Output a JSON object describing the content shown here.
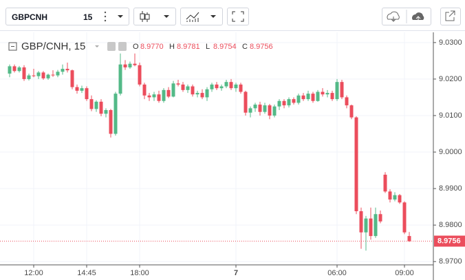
{
  "toolbar": {
    "symbol": "GBPCNH",
    "interval": "15"
  },
  "chart_data": {
    "type": "candlestick",
    "title": "GBP/CNH, 15",
    "legend": [
      {
        "label": "O",
        "value": "8.9770"
      },
      {
        "label": "H",
        "value": "8.9781"
      },
      {
        "label": "L",
        "value": "8.9754"
      },
      {
        "label": "C",
        "value": "8.9756"
      }
    ],
    "categories": [
      null,
      null,
      null,
      null,
      null,
      "12:00",
      null,
      null,
      null,
      null,
      null,
      null,
      null,
      null,
      null,
      null,
      "14:45",
      null,
      null,
      null,
      null,
      null,
      null,
      null,
      null,
      null,
      null,
      "18:00",
      null,
      null,
      null,
      null,
      null,
      null,
      null,
      null,
      null,
      null,
      null,
      null,
      null,
      null,
      null,
      null,
      null,
      null,
      null,
      "7",
      null,
      null,
      null,
      null,
      null,
      null,
      null,
      null,
      null,
      null,
      null,
      null,
      null,
      null,
      null,
      null,
      null,
      null,
      null,
      null,
      "06:00",
      null,
      null,
      null,
      null,
      null,
      null,
      null,
      null,
      null,
      null,
      null,
      null,
      null,
      "09:00",
      null
    ],
    "open": [
      9.0215,
      9.0235,
      9.0222,
      9.0232,
      9.02,
      9.021,
      9.0208,
      9.0218,
      9.0202,
      9.0212,
      9.021,
      9.022,
      9.0228,
      9.0224,
      9.0178,
      9.0168,
      9.0175,
      9.0145,
      9.0118,
      9.0138,
      9.0105,
      9.0115,
      9.005,
      9.016,
      9.024,
      9.0232,
      9.0242,
      9.0238,
      9.0185,
      9.0155,
      9.015,
      9.0158,
      9.014,
      9.017,
      9.0152,
      9.0188,
      9.0185,
      9.017,
      9.018,
      9.0158,
      9.0162,
      9.015,
      9.0172,
      9.0185,
      9.0175,
      9.018,
      9.0192,
      9.0175,
      9.0185,
      9.0165,
      9.0108,
      9.012,
      9.013,
      9.011,
      9.0128,
      9.01,
      9.0125,
      9.014,
      9.0128,
      9.0145,
      9.0135,
      9.0155,
      9.0145,
      9.016,
      9.014,
      9.0165,
      9.0158,
      9.0162,
      9.0145,
      9.0192,
      9.015,
      9.0128,
      9.0095,
      8.9838,
      8.978,
      8.9818,
      8.977,
      8.983,
      8.9938,
      8.9892,
      8.987,
      8.9882,
      8.9862,
      8.977
    ],
    "high": [
      9.024,
      9.024,
      9.0236,
      9.0238,
      9.0215,
      9.0228,
      9.0222,
      9.0222,
      9.0215,
      9.0224,
      9.0225,
      9.024,
      9.0245,
      9.0226,
      9.0185,
      9.0182,
      9.018,
      9.0155,
      9.0142,
      9.0145,
      9.012,
      9.0118,
      9.0165,
      9.027,
      9.0252,
      9.0248,
      9.027,
      9.0245,
      9.019,
      9.0162,
      9.0165,
      9.0168,
      9.0175,
      9.0178,
      9.0195,
      9.0198,
      9.0192,
      9.0185,
      9.0185,
      9.0168,
      9.0172,
      9.0178,
      9.019,
      9.0192,
      9.0185,
      9.0198,
      9.02,
      9.019,
      9.019,
      9.0168,
      9.0125,
      9.0135,
      9.0138,
      9.0135,
      9.0132,
      9.013,
      9.0145,
      9.0145,
      9.015,
      9.015,
      9.016,
      9.0162,
      9.0168,
      9.0165,
      9.017,
      9.0175,
      9.017,
      9.0168,
      9.02,
      9.0198,
      9.0155,
      9.013,
      9.0098,
      8.9848,
      8.9825,
      8.9848,
      8.9848,
      8.984,
      8.9945,
      8.9898,
      8.989,
      8.9885,
      8.9865,
      8.9781
    ],
    "low": [
      9.0205,
      9.0218,
      9.0218,
      9.0195,
      9.0196,
      9.0205,
      9.02,
      9.0198,
      9.0198,
      9.0206,
      9.0205,
      9.0212,
      9.0218,
      9.0172,
      9.016,
      9.0162,
      9.014,
      9.0112,
      9.011,
      9.0098,
      9.0095,
      9.004,
      9.0045,
      9.0155,
      9.0225,
      9.0228,
      9.0235,
      9.018,
      9.0145,
      9.014,
      9.014,
      9.0135,
      9.0135,
      9.0148,
      9.015,
      9.018,
      9.0165,
      9.0162,
      9.0152,
      9.015,
      9.0145,
      9.014,
      9.0165,
      9.017,
      9.0168,
      9.0175,
      9.017,
      9.0165,
      9.016,
      9.01,
      9.0095,
      9.011,
      9.01,
      9.0105,
      9.009,
      9.0095,
      9.0115,
      9.012,
      9.0122,
      9.013,
      9.013,
      9.014,
      9.014,
      9.0135,
      9.0138,
      9.0152,
      9.015,
      9.014,
      9.014,
      9.0145,
      9.012,
      9.009,
      8.983,
      8.9735,
      8.973,
      8.976,
      8.9765,
      8.9805,
      8.9888,
      8.9862,
      8.9865,
      8.9858,
      8.9775,
      8.9754
    ],
    "close": [
      9.0235,
      9.0222,
      9.0232,
      9.02,
      9.021,
      9.0208,
      9.0218,
      9.0202,
      9.0212,
      9.021,
      9.022,
      9.0228,
      9.0224,
      9.0178,
      9.0168,
      9.0175,
      9.0145,
      9.0118,
      9.0138,
      9.0105,
      9.0115,
      9.005,
      9.016,
      9.024,
      9.0232,
      9.0242,
      9.0238,
      9.0185,
      9.0155,
      9.015,
      9.0158,
      9.014,
      9.017,
      9.0152,
      9.0188,
      9.0185,
      9.017,
      9.018,
      9.0158,
      9.0162,
      9.015,
      9.0172,
      9.0185,
      9.0175,
      9.018,
      9.0192,
      9.0175,
      9.0185,
      9.0165,
      9.0108,
      9.012,
      9.013,
      9.011,
      9.0128,
      9.01,
      9.0125,
      9.014,
      9.0128,
      9.0145,
      9.0135,
      9.0155,
      9.0145,
      9.016,
      9.014,
      9.0165,
      9.0158,
      9.0162,
      9.0145,
      9.0192,
      9.015,
      9.0128,
      9.0095,
      8.9838,
      8.978,
      8.9818,
      8.977,
      8.983,
      8.981,
      8.9892,
      8.987,
      8.9882,
      8.9862,
      8.978,
      8.9756
    ],
    "up_color": "#53b987",
    "down_color": "#eb4d5c",
    "ylim": [
      8.9691,
      9.0328
    ],
    "yticks": [
      {
        "value": 8.97,
        "label": "8.9700"
      },
      {
        "value": 8.98,
        "label": "8.9800"
      },
      {
        "value": 8.99,
        "label": "8.9900"
      },
      {
        "value": 9.0,
        "label": "9.0000"
      },
      {
        "value": 9.01,
        "label": "9.0100"
      },
      {
        "value": 9.02,
        "label": "9.0200"
      },
      {
        "value": 9.03,
        "label": "9.0300"
      }
    ],
    "grid": true,
    "last_price": 8.9756
  }
}
